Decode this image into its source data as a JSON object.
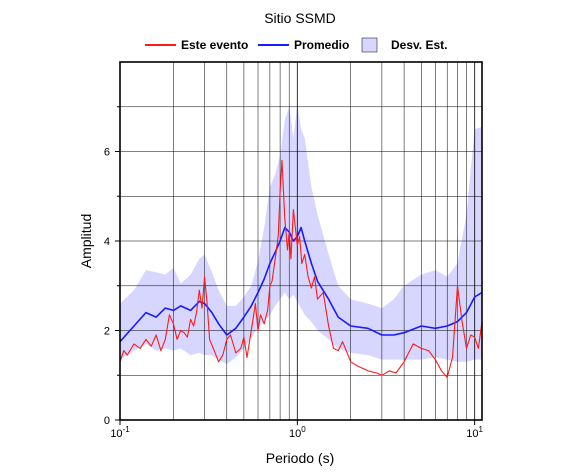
{
  "chart_data": {
    "type": "line",
    "title": "Sitio SSMD",
    "xlabel": "Periodo (s)",
    "ylabel": "Amplitud",
    "x_scale": "log",
    "xlim": [
      0.1,
      11
    ],
    "ylim": [
      0,
      8
    ],
    "grid": true,
    "legend_position": "top",
    "x_ticks": [
      {
        "value": 0.1,
        "base": "10",
        "exp": "-1"
      },
      {
        "value": 1,
        "base": "10",
        "exp": "0"
      },
      {
        "value": 10,
        "base": "10",
        "exp": "1"
      }
    ],
    "y_ticks": [
      0,
      2,
      4,
      6
    ],
    "legend": [
      {
        "label": "Este evento",
        "symbol": "line",
        "color": "#ff1a1a"
      },
      {
        "label": "Promedio",
        "symbol": "line",
        "color": "#1a1aff"
      },
      {
        "label": "Desv. Est.",
        "symbol": "box",
        "color": "#d6d6ff"
      }
    ],
    "series": [
      {
        "name": "Promedio",
        "color": "#1a1aff",
        "x": [
          0.1,
          0.12,
          0.14,
          0.16,
          0.18,
          0.2,
          0.22,
          0.25,
          0.28,
          0.3,
          0.33,
          0.36,
          0.4,
          0.45,
          0.5,
          0.55,
          0.6,
          0.65,
          0.7,
          0.75,
          0.8,
          0.85,
          0.9,
          0.95,
          1.0,
          1.05,
          1.1,
          1.2,
          1.3,
          1.5,
          1.7,
          2.0,
          2.5,
          3.0,
          3.5,
          4.0,
          5.0,
          6.0,
          7.0,
          8.0,
          9.0,
          10.0,
          11.0
        ],
        "values": [
          1.75,
          2.1,
          2.4,
          2.3,
          2.5,
          2.45,
          2.55,
          2.45,
          2.65,
          2.6,
          2.4,
          2.15,
          1.9,
          2.05,
          2.3,
          2.55,
          2.85,
          3.15,
          3.5,
          3.75,
          4.0,
          4.3,
          4.2,
          4.0,
          4.1,
          4.3,
          4.0,
          3.5,
          3.1,
          2.7,
          2.3,
          2.1,
          2.05,
          1.9,
          1.9,
          1.95,
          2.1,
          2.05,
          2.1,
          2.2,
          2.4,
          2.75,
          2.85
        ]
      },
      {
        "name": "Este evento",
        "color": "#ff1a1a",
        "x": [
          0.1,
          0.105,
          0.11,
          0.12,
          0.13,
          0.14,
          0.15,
          0.16,
          0.17,
          0.18,
          0.19,
          0.2,
          0.21,
          0.22,
          0.23,
          0.24,
          0.25,
          0.26,
          0.27,
          0.28,
          0.29,
          0.3,
          0.31,
          0.32,
          0.34,
          0.36,
          0.38,
          0.4,
          0.42,
          0.45,
          0.48,
          0.5,
          0.52,
          0.55,
          0.58,
          0.6,
          0.62,
          0.65,
          0.68,
          0.7,
          0.72,
          0.75,
          0.78,
          0.8,
          0.82,
          0.85,
          0.88,
          0.9,
          0.92,
          0.95,
          1.0,
          1.03,
          1.06,
          1.1,
          1.15,
          1.2,
          1.25,
          1.3,
          1.4,
          1.5,
          1.6,
          1.7,
          1.8,
          2.0,
          2.2,
          2.5,
          2.8,
          3.0,
          3.3,
          3.6,
          4.0,
          4.5,
          5.0,
          5.5,
          6.0,
          6.5,
          7.0,
          7.5,
          8.0,
          8.5,
          9.0,
          9.5,
          10.0,
          10.5,
          11.0
        ],
        "values": [
          1.3,
          1.55,
          1.45,
          1.7,
          1.6,
          1.8,
          1.65,
          1.9,
          1.55,
          1.8,
          2.35,
          2.15,
          1.8,
          2.0,
          1.95,
          1.85,
          2.25,
          2.1,
          2.4,
          2.9,
          2.5,
          3.2,
          2.6,
          1.8,
          1.55,
          1.3,
          1.45,
          1.8,
          1.9,
          1.5,
          1.6,
          1.85,
          1.4,
          2.0,
          2.6,
          2.0,
          2.35,
          2.15,
          2.45,
          3.0,
          3.1,
          3.6,
          4.1,
          5.1,
          5.8,
          4.5,
          3.8,
          4.2,
          3.6,
          4.7,
          3.9,
          4.1,
          3.5,
          3.7,
          3.2,
          2.95,
          3.2,
          2.7,
          2.85,
          2.1,
          1.6,
          1.55,
          1.75,
          1.3,
          1.2,
          1.1,
          1.05,
          1.0,
          1.1,
          1.05,
          1.3,
          1.7,
          1.6,
          1.55,
          1.35,
          1.1,
          0.95,
          1.4,
          3.0,
          2.2,
          1.6,
          1.9,
          1.85,
          1.6,
          2.2
        ]
      }
    ],
    "band": {
      "name": "Desv. Est.",
      "color": "#d6d6ff",
      "x": [
        0.1,
        0.12,
        0.14,
        0.16,
        0.18,
        0.2,
        0.22,
        0.25,
        0.28,
        0.3,
        0.33,
        0.36,
        0.4,
        0.45,
        0.5,
        0.55,
        0.6,
        0.65,
        0.7,
        0.75,
        0.8,
        0.85,
        0.9,
        0.95,
        1.0,
        1.05,
        1.1,
        1.2,
        1.3,
        1.5,
        1.7,
        2.0,
        2.5,
        3.0,
        3.5,
        4.0,
        5.0,
        6.0,
        7.0,
        8.0,
        9.0,
        10.0,
        11.0
      ],
      "upper": [
        2.6,
        2.9,
        3.35,
        3.3,
        3.25,
        3.4,
        3.05,
        3.25,
        3.6,
        3.7,
        3.3,
        2.9,
        2.55,
        2.55,
        2.75,
        3.0,
        3.55,
        4.3,
        5.2,
        5.5,
        5.9,
        6.7,
        7.0,
        6.3,
        7.05,
        6.5,
        6.3,
        5.2,
        4.6,
        3.7,
        3.0,
        2.7,
        2.6,
        2.5,
        2.7,
        3.0,
        3.25,
        3.35,
        3.2,
        3.5,
        4.6,
        6.5,
        6.55
      ],
      "lower": [
        1.35,
        1.55,
        1.7,
        1.55,
        1.6,
        1.55,
        1.6,
        1.45,
        1.5,
        1.45,
        1.45,
        1.35,
        1.25,
        1.4,
        1.6,
        1.85,
        2.05,
        2.2,
        2.35,
        2.55,
        2.7,
        2.85,
        2.7,
        2.8,
        2.65,
        2.5,
        2.35,
        2.2,
        2.0,
        1.8,
        1.6,
        1.5,
        1.45,
        1.35,
        1.35,
        1.35,
        1.35,
        1.4,
        1.35,
        1.3,
        1.3,
        1.35,
        1.35
      ]
    }
  }
}
